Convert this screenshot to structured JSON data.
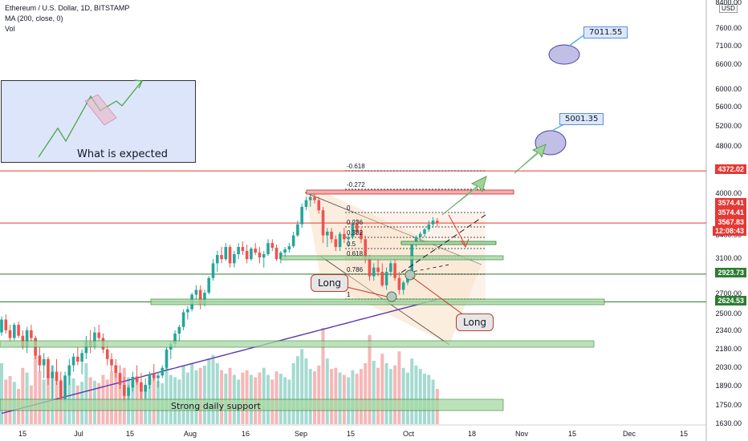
{
  "header": {
    "symbol_line": "Ethereum / U.S. Dollar, 1D, BITSTAMP",
    "ma_line": "MA (200, close, 0)",
    "vol_line": "Vol",
    "currency": "USD"
  },
  "chart_data": {
    "type": "candlestick",
    "symbol": "Ethereum / U.S. Dollar",
    "interval": "1D",
    "exchange": "BITSTAMP",
    "y_scale": "log",
    "ylim": [
      1630,
      8400
    ],
    "x_ticks": [
      "15",
      "Jul",
      "15",
      "Aug",
      "16",
      "Sep",
      "15",
      "Oct",
      "18",
      "Nov",
      "15",
      "Dec",
      "15"
    ],
    "y_ticks": [
      "8400.00",
      "7600.00",
      "7100.00",
      "6600.00",
      "6000.00",
      "5600.00",
      "5200.00",
      "4800.00",
      "4400.00",
      "4000.00",
      "3740.00",
      "3400.00",
      "3100.00",
      "2923.73",
      "2700.00",
      "2500.00",
      "2340.00",
      "2180.00",
      "2030.00",
      "1890.00",
      "1750.00",
      "1630.00"
    ],
    "price_labels": [
      {
        "text": "4372.02",
        "color": "#e53935"
      },
      {
        "text": "3574.41",
        "color": "#e53935"
      },
      {
        "text": "3574.41",
        "color": "#e53935"
      },
      {
        "text": "3567.83",
        "color": "#e53935"
      },
      {
        "text": "12:08:43",
        "color": "#e53935"
      },
      {
        "text": "2923.73",
        "color": "#2e7d32"
      },
      {
        "text": "2624.53",
        "color": "#2e7d32"
      }
    ],
    "horizontal_levels": [
      4372.02,
      3567.83,
      2923.73,
      2624.53
    ],
    "fib_levels": [
      "-0.618",
      "-0.272",
      "0",
      "0.236",
      "0.382",
      "0.5",
      "0.618",
      "0.786",
      "1"
    ],
    "targets": [
      "5001.35",
      "7011.55"
    ],
    "ma200": {
      "name": "MA (200, close, 0)",
      "color": "#5e35b1"
    },
    "candles": [
      [
        2330,
        2480,
        2300,
        2450
      ],
      [
        2450,
        2500,
        2320,
        2350
      ],
      [
        2350,
        2400,
        2250,
        2280
      ],
      [
        2280,
        2420,
        2260,
        2400
      ],
      [
        2400,
        2430,
        2280,
        2300
      ],
      [
        2300,
        2350,
        2180,
        2200
      ],
      [
        2200,
        2380,
        2150,
        2350
      ],
      [
        2350,
        2400,
        2250,
        2280
      ],
      [
        2280,
        2300,
        2100,
        2130
      ],
      [
        2130,
        2200,
        2000,
        2050
      ],
      [
        2050,
        2150,
        1950,
        2100
      ],
      [
        2100,
        2120,
        1900,
        1950
      ],
      [
        1950,
        2050,
        1800,
        2000
      ],
      [
        2000,
        2100,
        1900,
        1930
      ],
      [
        1930,
        2000,
        1720,
        1800
      ],
      [
        1800,
        2000,
        1780,
        1970
      ],
      [
        1970,
        2100,
        1900,
        2050
      ],
      [
        2050,
        2150,
        2000,
        2120
      ],
      [
        2120,
        2200,
        2050,
        2080
      ],
      [
        2080,
        2180,
        1980,
        2150
      ],
      [
        2150,
        2300,
        2100,
        2250
      ],
      [
        2250,
        2350,
        2150,
        2200
      ],
      [
        2200,
        2380,
        2180,
        2330
      ],
      [
        2330,
        2400,
        2250,
        2280
      ],
      [
        2280,
        2320,
        2150,
        2180
      ],
      [
        2180,
        2250,
        2050,
        2100
      ],
      [
        2100,
        2150,
        2000,
        2050
      ],
      [
        2050,
        2100,
        1950,
        1990
      ],
      [
        1990,
        2050,
        1870,
        1900
      ],
      [
        1900,
        1960,
        1780,
        1820
      ],
      [
        1820,
        1900,
        1720,
        1880
      ],
      [
        1880,
        2000,
        1850,
        1960
      ],
      [
        1960,
        2050,
        1900,
        1920
      ],
      [
        1920,
        1990,
        1800,
        1850
      ],
      [
        1850,
        1950,
        1800,
        1900
      ],
      [
        1900,
        2000,
        1870,
        1980
      ],
      [
        1980,
        2060,
        1930,
        1950
      ],
      [
        1950,
        2000,
        1880,
        1970
      ],
      [
        1970,
        2050,
        1950,
        2030
      ],
      [
        2030,
        2200,
        2010,
        2180
      ],
      [
        2180,
        2250,
        2100,
        2230
      ],
      [
        2230,
        2350,
        2200,
        2320
      ],
      [
        2320,
        2400,
        2250,
        2380
      ],
      [
        2380,
        2550,
        2350,
        2520
      ],
      [
        2520,
        2580,
        2450,
        2550
      ],
      [
        2550,
        2720,
        2530,
        2700
      ],
      [
        2700,
        2800,
        2650,
        2750
      ],
      [
        2750,
        2800,
        2550,
        2600
      ],
      [
        2600,
        2750,
        2580,
        2720
      ],
      [
        2720,
        2900,
        2700,
        2880
      ],
      [
        2880,
        3100,
        2850,
        3050
      ],
      [
        3050,
        3200,
        2950,
        3150
      ],
      [
        3150,
        3250,
        3050,
        3100
      ],
      [
        3100,
        3300,
        3080,
        3250
      ],
      [
        3250,
        3280,
        3000,
        3050
      ],
      [
        3050,
        3200,
        3000,
        3160
      ],
      [
        3160,
        3300,
        3100,
        3250
      ],
      [
        3250,
        3320,
        3150,
        3200
      ],
      [
        3200,
        3280,
        3050,
        3100
      ],
      [
        3100,
        3250,
        3080,
        3230
      ],
      [
        3230,
        3300,
        3150,
        3180
      ],
      [
        3180,
        3250,
        3050,
        3120
      ],
      [
        3120,
        3200,
        3000,
        3160
      ],
      [
        3160,
        3350,
        3140,
        3300
      ],
      [
        3300,
        3350,
        3200,
        3240
      ],
      [
        3240,
        3280,
        3080,
        3100
      ],
      [
        3100,
        3200,
        3050,
        3180
      ],
      [
        3180,
        3250,
        3100,
        3220
      ],
      [
        3220,
        3300,
        3180,
        3260
      ],
      [
        3260,
        3450,
        3240,
        3400
      ],
      [
        3400,
        3600,
        3380,
        3550
      ],
      [
        3550,
        3850,
        3500,
        3800
      ],
      [
        3800,
        3950,
        3750,
        3900
      ],
      [
        3900,
        3990,
        3800,
        3950
      ],
      [
        3950,
        4020,
        3850,
        3900
      ],
      [
        3900,
        3950,
        3700,
        3750
      ],
      [
        3750,
        3800,
        3300,
        3400
      ],
      [
        3400,
        3500,
        3250,
        3450
      ],
      [
        3450,
        3500,
        3300,
        3350
      ],
      [
        3350,
        3400,
        3200,
        3250
      ],
      [
        3250,
        3450,
        3200,
        3420
      ],
      [
        3420,
        3500,
        3300,
        3350
      ],
      [
        3350,
        3420,
        3250,
        3380
      ],
      [
        3380,
        3600,
        3350,
        3550
      ],
      [
        3550,
        3620,
        3400,
        3450
      ],
      [
        3450,
        3500,
        3300,
        3350
      ],
      [
        3350,
        3400,
        3050,
        3100
      ],
      [
        3100,
        3150,
        2850,
        2900
      ],
      [
        2900,
        3050,
        2850,
        3000
      ],
      [
        3000,
        3100,
        2900,
        2950
      ],
      [
        2950,
        3050,
        2780,
        2800
      ],
      [
        2800,
        3000,
        2750,
        2950
      ],
      [
        2950,
        3080,
        2900,
        3050
      ],
      [
        3050,
        3100,
        2850,
        2880
      ],
      [
        2880,
        2950,
        2700,
        2750
      ],
      [
        2750,
        2850,
        2700,
        2830
      ],
      [
        2830,
        2950,
        2800,
        2920
      ],
      [
        2920,
        3300,
        2900,
        3280
      ],
      [
        3280,
        3400,
        3250,
        3380
      ],
      [
        3380,
        3450,
        3300,
        3420
      ],
      [
        3420,
        3500,
        3380,
        3480
      ],
      [
        3480,
        3600,
        3450,
        3550
      ],
      [
        3550,
        3650,
        3500,
        3600
      ],
      [
        3600,
        3640,
        3520,
        3567.83
      ]
    ],
    "volumes": [
      520,
      380,
      410,
      360,
      300,
      480,
      440,
      330,
      600,
      450,
      380,
      420,
      500,
      400,
      380,
      350,
      430,
      390,
      330,
      360,
      520,
      400,
      370,
      350,
      420,
      380,
      450,
      500,
      430,
      480,
      400,
      360,
      410,
      350,
      330,
      380,
      420,
      370,
      350,
      480,
      420,
      400,
      380,
      500,
      440,
      520,
      460,
      480,
      500,
      560,
      590,
      520,
      460,
      430,
      480,
      420,
      380,
      440,
      460,
      420,
      400,
      440,
      480,
      420,
      380,
      450,
      430,
      400,
      380,
      520,
      580,
      640,
      560,
      470,
      450,
      500,
      820,
      560,
      470,
      480,
      440,
      420,
      400,
      460,
      430,
      470,
      520,
      760,
      540,
      480,
      600,
      520,
      470,
      500,
      620,
      480,
      440,
      560,
      500,
      470,
      430,
      420,
      380,
      300
    ],
    "annotations": [
      "Long",
      "Long",
      "What is expected",
      "Strong daily support"
    ]
  }
}
